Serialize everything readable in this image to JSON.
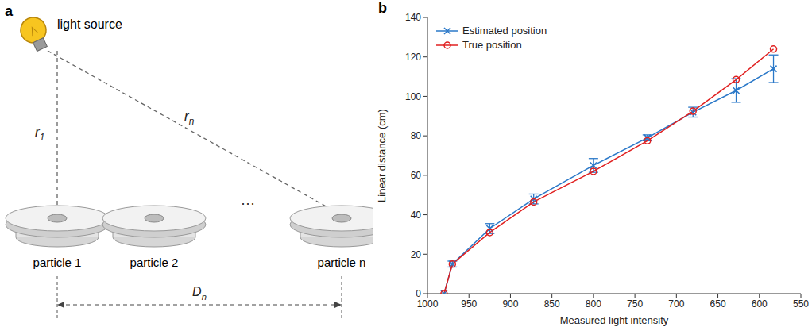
{
  "diagram": {
    "panel": "a",
    "light_source": "light source",
    "distances": [
      "r1",
      "rn"
    ],
    "particles": [
      "particle 1",
      "particle 2",
      "particle n"
    ],
    "ellipsis": "···",
    "span": "Dn"
  },
  "chart_data": {
    "type": "line",
    "panel": "b",
    "x_label": "Measured light intensity",
    "y_label": "Linear distance (cm)",
    "x": [
      980,
      970,
      925,
      872,
      800,
      735,
      680,
      628,
      583
    ],
    "xlim": [
      1000,
      550
    ],
    "xticks": [
      1000,
      950,
      900,
      850,
      800,
      750,
      700,
      650,
      600,
      550
    ],
    "ylim": [
      0,
      140
    ],
    "yticks": [
      0,
      20,
      40,
      60,
      80,
      100,
      120,
      140
    ],
    "grid": false,
    "legend": "top-left",
    "series": [
      {
        "name": "Estimated position",
        "color": "#2a78c8",
        "marker": "x",
        "values": [
          0,
          15,
          33,
          48,
          65,
          79,
          92,
          103,
          114
        ],
        "errors": [
          0,
          1.5,
          2.5,
          2.5,
          3.5,
          1.5,
          2.5,
          6,
          7
        ]
      },
      {
        "name": "True position",
        "color": "#e02020",
        "marker": "o",
        "values": [
          0,
          15,
          31,
          46.5,
          62,
          77.5,
          92.5,
          108.5,
          124
        ]
      }
    ]
  }
}
